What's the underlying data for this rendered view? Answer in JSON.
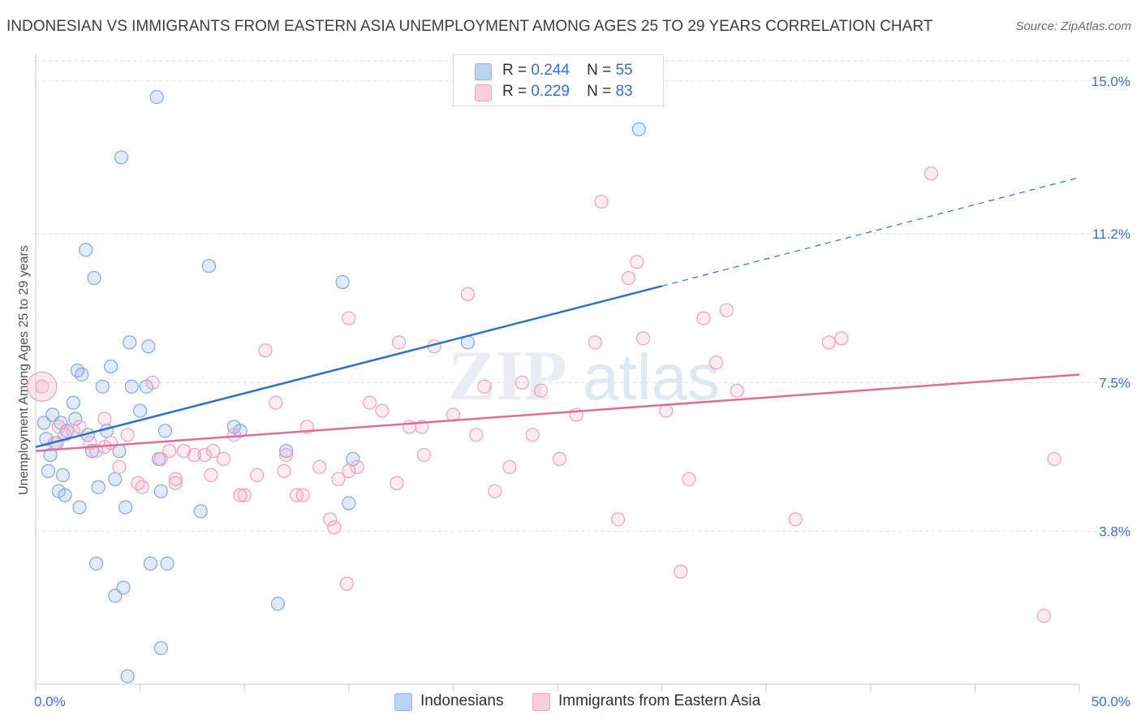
{
  "header": {
    "title": "INDONESIAN VS IMMIGRANTS FROM EASTERN ASIA UNEMPLOYMENT AMONG AGES 25 TO 29 YEARS CORRELATION CHART",
    "source": "Source: ZipAtlas.com"
  },
  "watermark": {
    "zip": "ZIP",
    "atlas": "atlas"
  },
  "legend": {
    "r_label": "R =",
    "n_label": "N =",
    "series": [
      {
        "r": "0.244",
        "n": "55"
      },
      {
        "r": "0.229",
        "n": "83"
      }
    ]
  },
  "chart_data": {
    "type": "scatter",
    "title": "INDONESIAN VS IMMIGRANTS FROM EASTERN ASIA UNEMPLOYMENT AMONG AGES 25 TO 29 YEARS CORRELATION CHART",
    "ylabel": "Unemployment Among Ages 25 to 29 years",
    "xlabel": "",
    "xlim": [
      0,
      50
    ],
    "ylim": [
      0,
      15.5
    ],
    "x_tick_labels": [
      "0.0%",
      "50.0%"
    ],
    "y_ticks": [
      3.8,
      7.5,
      11.2,
      15.0
    ],
    "y_tick_labels": [
      "3.8%",
      "7.5%",
      "11.2%",
      "15.0%"
    ],
    "grid": "horizontal dashed",
    "legend_position": "top-center and bottom",
    "colors": {
      "Indonesians": "#8fb4ea",
      "Immigrants from Eastern Asia": "#f0a5bf",
      "Indonesians_line": "#2f6fcf",
      "Immigrants from Eastern Asia_line": "#e06d96",
      "tick_label": "#3a6fd0"
    },
    "series": [
      {
        "name": "Indonesians",
        "r": 0.244,
        "n": 55,
        "trend": {
          "x0": 0,
          "y0": 5.9,
          "x1": 30,
          "y1": 9.9,
          "dashed_to_x": 50,
          "dashed_to_y": 12.6
        },
        "points": [
          [
            0.4,
            6.5
          ],
          [
            0.5,
            6.1
          ],
          [
            0.7,
            5.7
          ],
          [
            0.8,
            6.7
          ],
          [
            1.0,
            6.0
          ],
          [
            0.6,
            5.3
          ],
          [
            1.2,
            6.5
          ],
          [
            1.5,
            6.3
          ],
          [
            1.3,
            5.2
          ],
          [
            1.1,
            4.8
          ],
          [
            1.4,
            4.7
          ],
          [
            1.8,
            7.0
          ],
          [
            1.9,
            6.6
          ],
          [
            2.0,
            7.8
          ],
          [
            2.2,
            7.7
          ],
          [
            2.5,
            6.2
          ],
          [
            2.7,
            5.8
          ],
          [
            2.1,
            4.4
          ],
          [
            2.4,
            10.8
          ],
          [
            2.8,
            10.1
          ],
          [
            3.0,
            4.9
          ],
          [
            3.2,
            7.4
          ],
          [
            3.4,
            6.3
          ],
          [
            3.6,
            7.9
          ],
          [
            3.8,
            5.1
          ],
          [
            4.0,
            5.8
          ],
          [
            4.3,
            4.4
          ],
          [
            4.5,
            8.5
          ],
          [
            4.1,
            13.1
          ],
          [
            4.6,
            7.4
          ],
          [
            5.0,
            6.8
          ],
          [
            5.3,
            7.4
          ],
          [
            5.4,
            8.4
          ],
          [
            5.8,
            14.6
          ],
          [
            6.2,
            6.3
          ],
          [
            6.0,
            4.8
          ],
          [
            8.3,
            10.4
          ],
          [
            9.8,
            6.3
          ],
          [
            12.0,
            5.8
          ],
          [
            14.7,
            10.0
          ],
          [
            15.2,
            5.6
          ],
          [
            15.0,
            4.5
          ],
          [
            20.7,
            8.5
          ],
          [
            28.9,
            13.8
          ],
          [
            4.2,
            2.4
          ],
          [
            5.5,
            3.0
          ],
          [
            6.3,
            3.0
          ],
          [
            3.8,
            2.2
          ],
          [
            4.4,
            0.2
          ],
          [
            6.0,
            0.9
          ],
          [
            7.9,
            4.3
          ],
          [
            11.6,
            2.0
          ],
          [
            5.9,
            5.6
          ],
          [
            2.9,
            3.0
          ],
          [
            9.5,
            6.4
          ]
        ]
      },
      {
        "name": "Immigrants from Eastern Asia",
        "r": 0.229,
        "n": 83,
        "trend": {
          "x0": 0,
          "y0": 5.8,
          "x1": 50,
          "y1": 7.7
        },
        "points": [
          [
            0.3,
            7.4
          ],
          [
            1.1,
            6.4
          ],
          [
            1.4,
            6.2
          ],
          [
            1.8,
            6.3
          ],
          [
            2.1,
            6.4
          ],
          [
            2.6,
            6.0
          ],
          [
            2.9,
            5.8
          ],
          [
            3.3,
            6.6
          ],
          [
            3.6,
            6.0
          ],
          [
            4.0,
            5.4
          ],
          [
            4.4,
            6.2
          ],
          [
            4.9,
            5.0
          ],
          [
            5.1,
            4.9
          ],
          [
            5.6,
            7.5
          ],
          [
            6.0,
            5.6
          ],
          [
            6.4,
            5.8
          ],
          [
            6.7,
            5.1
          ],
          [
            7.1,
            5.8
          ],
          [
            7.6,
            5.7
          ],
          [
            8.1,
            5.7
          ],
          [
            8.5,
            5.8
          ],
          [
            9.0,
            5.6
          ],
          [
            9.5,
            6.2
          ],
          [
            10.0,
            4.7
          ],
          [
            10.6,
            5.2
          ],
          [
            11.0,
            8.3
          ],
          [
            11.5,
            7.0
          ],
          [
            12.0,
            5.7
          ],
          [
            12.5,
            4.7
          ],
          [
            13.0,
            6.4
          ],
          [
            13.6,
            5.4
          ],
          [
            14.1,
            4.1
          ],
          [
            14.5,
            5.1
          ],
          [
            15.0,
            9.1
          ],
          [
            15.4,
            5.4
          ],
          [
            16.0,
            7.0
          ],
          [
            16.6,
            6.8
          ],
          [
            17.4,
            8.5
          ],
          [
            17.9,
            6.4
          ],
          [
            18.6,
            5.7
          ],
          [
            19.1,
            8.4
          ],
          [
            20.0,
            6.7
          ],
          [
            20.7,
            9.7
          ],
          [
            21.5,
            7.4
          ],
          [
            22.0,
            4.8
          ],
          [
            22.7,
            5.4
          ],
          [
            23.3,
            7.5
          ],
          [
            23.8,
            6.2
          ],
          [
            24.2,
            7.3
          ],
          [
            25.1,
            5.6
          ],
          [
            25.9,
            6.7
          ],
          [
            26.8,
            8.5
          ],
          [
            27.1,
            12.0
          ],
          [
            27.9,
            4.1
          ],
          [
            28.4,
            10.1
          ],
          [
            28.8,
            10.5
          ],
          [
            29.1,
            8.6
          ],
          [
            30.2,
            6.8
          ],
          [
            30.9,
            2.8
          ],
          [
            31.3,
            5.1
          ],
          [
            32.0,
            9.1
          ],
          [
            32.6,
            8.0
          ],
          [
            33.1,
            9.3
          ],
          [
            33.6,
            7.3
          ],
          [
            36.4,
            4.1
          ],
          [
            38.0,
            8.5
          ],
          [
            38.6,
            8.6
          ],
          [
            42.9,
            12.7
          ],
          [
            48.8,
            5.6
          ],
          [
            48.3,
            1.7
          ],
          [
            14.9,
            2.5
          ],
          [
            11.9,
            5.3
          ],
          [
            9.8,
            4.7
          ],
          [
            8.4,
            5.2
          ],
          [
            6.7,
            5.0
          ],
          [
            3.3,
            5.9
          ],
          [
            15.0,
            5.3
          ],
          [
            17.3,
            5.0
          ],
          [
            12.8,
            4.7
          ],
          [
            18.5,
            6.4
          ],
          [
            21.1,
            6.2
          ],
          [
            14.3,
            3.9
          ],
          [
            0.9,
            6.0
          ]
        ]
      }
    ]
  },
  "bottom_legend": {
    "items": [
      {
        "label": "Indonesians"
      },
      {
        "label": "Immigrants from Eastern Asia"
      }
    ]
  }
}
